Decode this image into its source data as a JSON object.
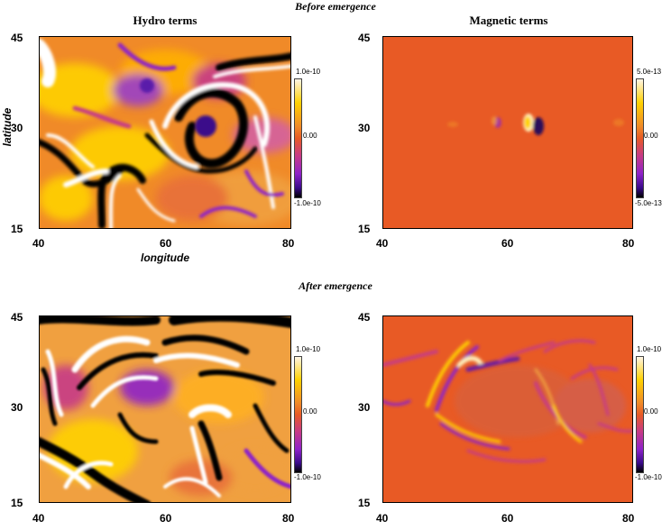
{
  "sections": {
    "before": "Before emergence",
    "after": "After emergence"
  },
  "columns": {
    "hydro": "Hydro terms",
    "magnetic": "Magnetic terms"
  },
  "axes": {
    "xlabel": "longitude",
    "ylabel": "latitude"
  },
  "colors": {
    "max": "#ffffff",
    "high": "#ffd100",
    "mid_high": "#f08a28",
    "zero": "#e85a25",
    "mid_low": "#c63a87",
    "low": "#8e22c8",
    "min": "#000000"
  },
  "chart_data": [
    {
      "type": "heatmap",
      "title": "Hydro terms",
      "section": "Before emergence",
      "xlabel": "longitude",
      "ylabel": "latitude",
      "x_ticks": [
        "40",
        "60",
        "80"
      ],
      "y_ticks": [
        "45",
        "30",
        "15"
      ],
      "xlim": [
        40,
        80
      ],
      "ylim": [
        15,
        45
      ],
      "colorbar_ticks": [
        "1.0e-10",
        "0.00",
        "-1.0e-10"
      ],
      "color_range": [
        -1e-10,
        1e-10
      ]
    },
    {
      "type": "heatmap",
      "title": "Magnetic terms",
      "section": "Before emergence",
      "x_ticks": [
        "40",
        "60",
        "80"
      ],
      "y_ticks": [
        "45",
        "30",
        "15"
      ],
      "xlim": [
        40,
        80
      ],
      "ylim": [
        15,
        45
      ],
      "colorbar_ticks": [
        "5.0e-13",
        "0.00",
        "-5.0e-13"
      ],
      "color_range": [
        -5e-13,
        5e-13
      ]
    },
    {
      "type": "heatmap",
      "section": "After emergence",
      "x_ticks": [
        "40",
        "60",
        "80"
      ],
      "y_ticks": [
        "45",
        "30",
        "15"
      ],
      "xlim": [
        40,
        80
      ],
      "ylim": [
        15,
        45
      ],
      "colorbar_ticks": [
        "1.0e-10",
        "0.00",
        "-1.0e-10"
      ],
      "color_range": [
        -1e-10,
        1e-10
      ]
    },
    {
      "type": "heatmap",
      "section": "After emergence",
      "x_ticks": [
        "40",
        "60",
        "80"
      ],
      "y_ticks": [
        "45",
        "30",
        "15"
      ],
      "xlim": [
        40,
        80
      ],
      "ylim": [
        15,
        45
      ],
      "colorbar_ticks": [
        "1.0e-10",
        "0.00",
        "-1.0e-10"
      ],
      "color_range": [
        -1e-10,
        1e-10
      ]
    }
  ]
}
